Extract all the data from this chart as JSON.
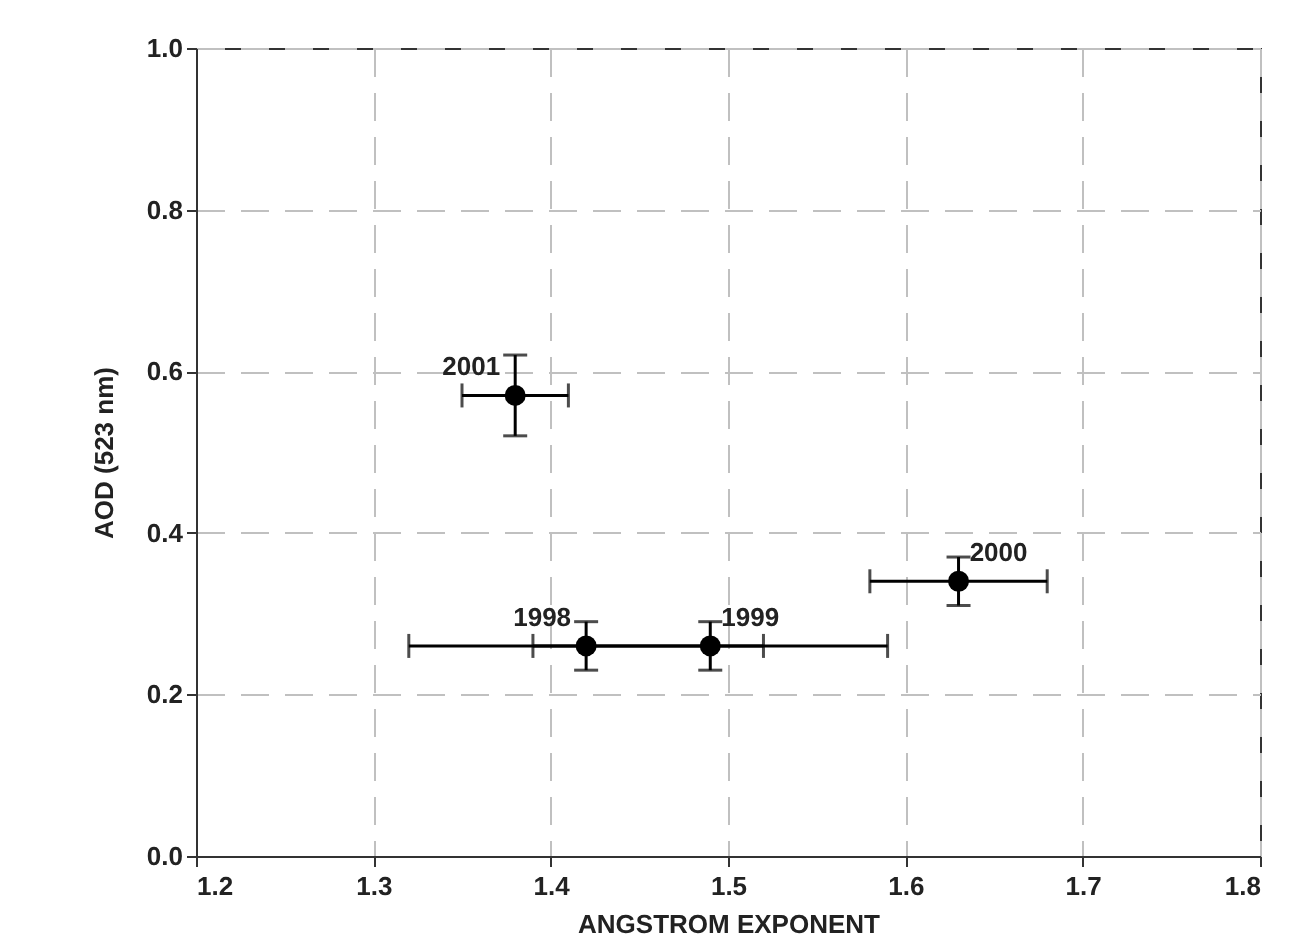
{
  "chart_data": {
    "type": "scatter",
    "xlabel": "ANGSTROM EXPONENT",
    "ylabel": "AOD (523 nm)",
    "x": [
      1.42,
      1.49,
      1.63,
      1.38
    ],
    "series": [
      {
        "color": "#000000",
        "values": [
          0.26,
          0.26,
          0.34,
          0.57
        ],
        "errors": [
          0.03,
          0.03,
          0.03,
          0.05
        ],
        "xerrors": [
          0.1,
          0.1,
          0.05,
          0.03
        ]
      }
    ],
    "xlim": [
      1.2,
      1.8
    ],
    "xticks": [
      1.2,
      1.3,
      1.4,
      1.5,
      1.6,
      1.7,
      1.8
    ],
    "ylim": [
      0,
      1
    ],
    "yticks": [
      {
        "value": 0,
        "label": "0.0"
      },
      0.2,
      0.4,
      0.6,
      0.8,
      {
        "value": 1,
        "label": "1.0"
      }
    ],
    "grid": true,
    "marker": "circle",
    "annotations": [
      {
        "text": "1998",
        "x": 1.42,
        "y": 0.26
      },
      {
        "text": "1999",
        "x": 1.49,
        "y": 0.26
      },
      {
        "text": "2000",
        "x": 1.63,
        "y": 0.34
      },
      {
        "text": "2001",
        "x": 1.38,
        "y": 0.57
      }
    ]
  }
}
